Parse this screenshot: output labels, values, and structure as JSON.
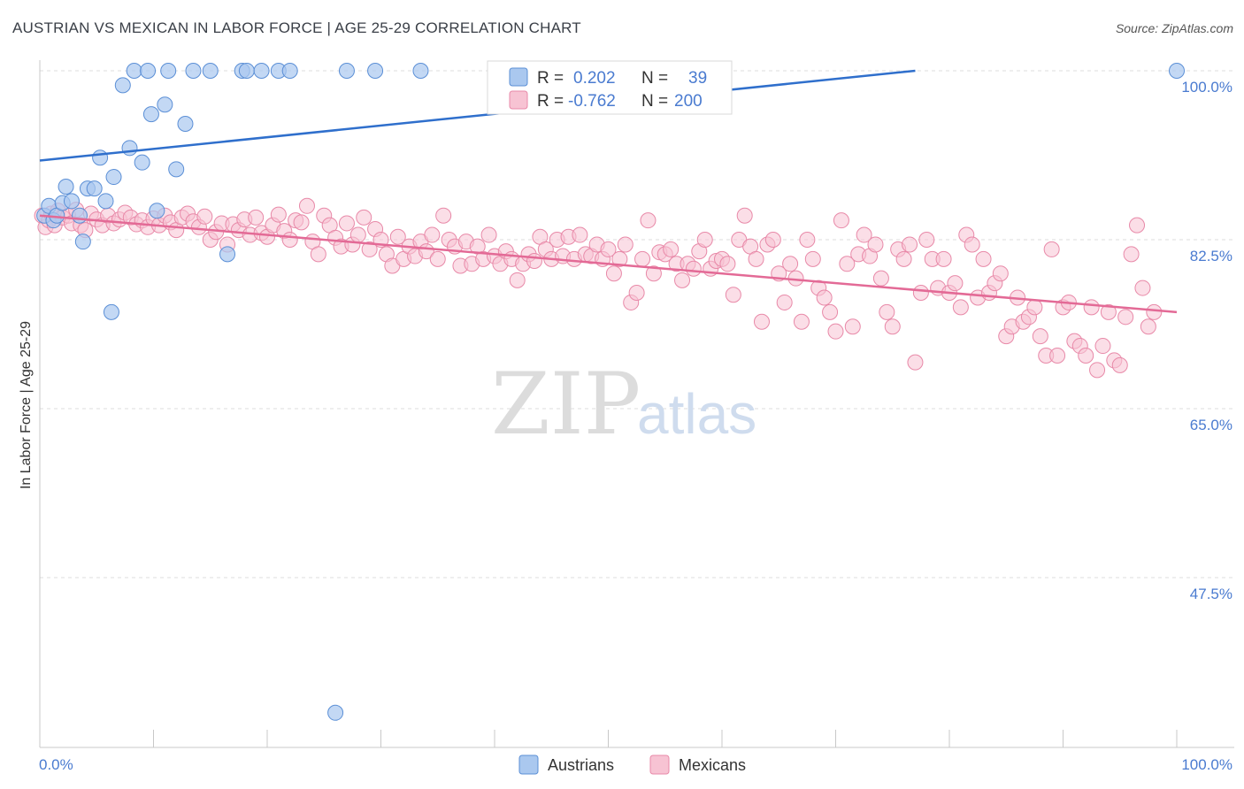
{
  "title": "AUSTRIAN VS MEXICAN IN LABOR FORCE | AGE 25-29 CORRELATION CHART",
  "source": "Source: ZipAtlas.com",
  "watermark": {
    "zip": "ZIP",
    "atlas": "atlas"
  },
  "colors": {
    "austrians_fill": "#aac8ef",
    "austrians_stroke": "#5b8fd6",
    "austrians_line": "#2f6fcc",
    "mexicans_fill": "#f7c3d3",
    "mexicans_stroke": "#e889a8",
    "mexicans_line": "#e36a96",
    "axis_blue": "#4a7bd0"
  },
  "legend": {
    "rows": [
      {
        "r_label": "R =",
        "r_value": "0.202",
        "n_label": "N =",
        "n_value": "39"
      },
      {
        "r_label": "R =",
        "r_value": "-0.762",
        "n_label": "N =",
        "n_value": "200"
      }
    ]
  },
  "chart_data": {
    "type": "scatter",
    "title": "AUSTRIAN VS MEXICAN IN LABOR FORCE | AGE 25-29 CORRELATION CHART",
    "xlabel": "",
    "ylabel": "In Labor Force | Age 25-29",
    "xlim": [
      0,
      100
    ],
    "ylim": [
      30,
      102
    ],
    "x_tick_labels": [
      "0.0%",
      "100.0%"
    ],
    "y_ticks": [
      100.0,
      82.5,
      65.0,
      47.5
    ],
    "y_tick_labels": [
      "100.0%",
      "82.5%",
      "65.0%",
      "47.5%"
    ],
    "grid": true,
    "legend_position": "bottom-center",
    "series": [
      {
        "name": "Austrians",
        "r": 0.202,
        "n": 39,
        "trend": {
          "x": [
            0,
            77
          ],
          "y": [
            90.7,
            100.0
          ]
        },
        "points": [
          [
            0.4,
            85.0
          ],
          [
            0.8,
            86.0
          ],
          [
            1.2,
            84.5
          ],
          [
            1.5,
            85.0
          ],
          [
            2.0,
            86.3
          ],
          [
            2.3,
            88.0
          ],
          [
            2.8,
            86.5
          ],
          [
            3.5,
            85.0
          ],
          [
            3.8,
            82.3
          ],
          [
            4.2,
            87.8
          ],
          [
            4.8,
            87.8
          ],
          [
            5.3,
            91.0
          ],
          [
            5.8,
            86.5
          ],
          [
            6.5,
            89.0
          ],
          [
            7.3,
            98.5
          ],
          [
            7.9,
            92.0
          ],
          [
            8.3,
            100.0
          ],
          [
            9.0,
            90.5
          ],
          [
            9.5,
            100.0
          ],
          [
            9.8,
            95.5
          ],
          [
            10.3,
            85.5
          ],
          [
            11.0,
            96.5
          ],
          [
            11.3,
            100.0
          ],
          [
            12.0,
            89.8
          ],
          [
            12.8,
            94.5
          ],
          [
            13.5,
            100.0
          ],
          [
            15.0,
            100.0
          ],
          [
            16.5,
            81.0
          ],
          [
            17.8,
            100.0
          ],
          [
            18.2,
            100.0
          ],
          [
            19.5,
            100.0
          ],
          [
            21.0,
            100.0
          ],
          [
            22.0,
            100.0
          ],
          [
            26.0,
            33.5
          ],
          [
            27.0,
            100.0
          ],
          [
            29.5,
            100.0
          ],
          [
            33.5,
            100.0
          ],
          [
            6.3,
            75.0
          ],
          [
            100.0,
            100.0
          ]
        ]
      },
      {
        "name": "Mexicans",
        "r": -0.762,
        "n": 200,
        "trend": {
          "x": [
            0,
            100
          ],
          "y": [
            85.0,
            75.0
          ]
        },
        "points": [
          [
            0.2,
            85.0
          ],
          [
            0.5,
            83.8
          ],
          [
            0.8,
            84.5
          ],
          [
            1.0,
            85.2
          ],
          [
            1.3,
            84.0
          ],
          [
            1.6,
            85.5
          ],
          [
            2.0,
            84.8
          ],
          [
            2.5,
            85.0
          ],
          [
            2.8,
            84.2
          ],
          [
            3.2,
            85.6
          ],
          [
            3.6,
            84.0
          ],
          [
            4.0,
            83.5
          ],
          [
            4.5,
            85.2
          ],
          [
            5.0,
            84.6
          ],
          [
            5.5,
            84.0
          ],
          [
            6.0,
            85.0
          ],
          [
            6.5,
            84.2
          ],
          [
            7.0,
            84.6
          ],
          [
            7.5,
            85.3
          ],
          [
            8.0,
            84.8
          ],
          [
            8.5,
            84.1
          ],
          [
            9.0,
            84.5
          ],
          [
            9.5,
            83.8
          ],
          [
            10.0,
            84.7
          ],
          [
            10.5,
            84.0
          ],
          [
            11.0,
            85.0
          ],
          [
            11.5,
            84.3
          ],
          [
            12.0,
            83.5
          ],
          [
            12.5,
            84.8
          ],
          [
            13.0,
            85.2
          ],
          [
            13.5,
            84.4
          ],
          [
            14.0,
            83.8
          ],
          [
            14.5,
            84.9
          ],
          [
            15.0,
            82.5
          ],
          [
            15.5,
            83.3
          ],
          [
            16.0,
            84.2
          ],
          [
            16.5,
            82.0
          ],
          [
            17.0,
            84.1
          ],
          [
            17.5,
            83.5
          ],
          [
            18.0,
            84.6
          ],
          [
            18.5,
            83.0
          ],
          [
            19.0,
            84.8
          ],
          [
            19.5,
            83.2
          ],
          [
            20.0,
            82.8
          ],
          [
            20.5,
            84.0
          ],
          [
            21.0,
            85.1
          ],
          [
            21.5,
            83.4
          ],
          [
            22.0,
            82.5
          ],
          [
            22.5,
            84.5
          ],
          [
            23.0,
            84.3
          ],
          [
            23.5,
            86.0
          ],
          [
            24.0,
            82.3
          ],
          [
            24.5,
            81.0
          ],
          [
            25.0,
            85.0
          ],
          [
            25.5,
            84.0
          ],
          [
            26.0,
            82.7
          ],
          [
            26.5,
            81.8
          ],
          [
            27.0,
            84.2
          ],
          [
            27.5,
            82.0
          ],
          [
            28.0,
            83.0
          ],
          [
            28.5,
            84.8
          ],
          [
            29.0,
            81.5
          ],
          [
            29.5,
            83.6
          ],
          [
            30.0,
            82.5
          ],
          [
            30.5,
            81.0
          ],
          [
            31.0,
            79.8
          ],
          [
            31.5,
            82.8
          ],
          [
            32.0,
            80.5
          ],
          [
            32.5,
            81.8
          ],
          [
            33.0,
            80.8
          ],
          [
            33.5,
            82.3
          ],
          [
            34.0,
            81.3
          ],
          [
            34.5,
            83.0
          ],
          [
            35.0,
            80.5
          ],
          [
            35.5,
            85.0
          ],
          [
            36.0,
            82.5
          ],
          [
            36.5,
            81.8
          ],
          [
            37.0,
            79.8
          ],
          [
            37.5,
            82.3
          ],
          [
            38.0,
            80.0
          ],
          [
            38.5,
            81.8
          ],
          [
            39.0,
            80.5
          ],
          [
            39.5,
            83.0
          ],
          [
            40.0,
            80.8
          ],
          [
            40.5,
            80.0
          ],
          [
            41.0,
            81.3
          ],
          [
            41.5,
            80.5
          ],
          [
            42.0,
            78.3
          ],
          [
            42.5,
            80.0
          ],
          [
            43.0,
            81.0
          ],
          [
            43.5,
            80.3
          ],
          [
            44.0,
            82.8
          ],
          [
            44.5,
            81.5
          ],
          [
            45.0,
            80.5
          ],
          [
            45.5,
            82.5
          ],
          [
            46.0,
            80.8
          ],
          [
            46.5,
            82.8
          ],
          [
            47.0,
            80.5
          ],
          [
            47.5,
            83.0
          ],
          [
            48.0,
            81.0
          ],
          [
            48.5,
            80.8
          ],
          [
            49.0,
            82.0
          ],
          [
            49.5,
            80.5
          ],
          [
            50.0,
            81.5
          ],
          [
            50.5,
            79.0
          ],
          [
            51.0,
            80.5
          ],
          [
            51.5,
            82.0
          ],
          [
            52.0,
            76.0
          ],
          [
            52.5,
            77.0
          ],
          [
            53.0,
            80.5
          ],
          [
            53.5,
            84.5
          ],
          [
            54.0,
            79.0
          ],
          [
            54.5,
            81.2
          ],
          [
            55.0,
            81.0
          ],
          [
            55.5,
            81.5
          ],
          [
            56.0,
            80.0
          ],
          [
            56.5,
            78.3
          ],
          [
            57.0,
            80.0
          ],
          [
            57.5,
            79.5
          ],
          [
            58.0,
            81.3
          ],
          [
            58.5,
            82.5
          ],
          [
            59.0,
            79.5
          ],
          [
            59.5,
            80.3
          ],
          [
            60.0,
            80.5
          ],
          [
            60.5,
            80.0
          ],
          [
            61.0,
            76.8
          ],
          [
            61.5,
            82.5
          ],
          [
            62.0,
            85.0
          ],
          [
            62.5,
            81.8
          ],
          [
            63.0,
            80.5
          ],
          [
            63.5,
            74.0
          ],
          [
            64.0,
            82.0
          ],
          [
            64.5,
            82.5
          ],
          [
            65.0,
            79.0
          ],
          [
            65.5,
            76.0
          ],
          [
            66.0,
            80.0
          ],
          [
            66.5,
            78.5
          ],
          [
            67.0,
            74.0
          ],
          [
            67.5,
            82.5
          ],
          [
            68.0,
            80.5
          ],
          [
            68.5,
            77.5
          ],
          [
            69.0,
            76.5
          ],
          [
            69.5,
            75.0
          ],
          [
            70.0,
            73.0
          ],
          [
            70.5,
            84.5
          ],
          [
            71.0,
            80.0
          ],
          [
            71.5,
            73.5
          ],
          [
            72.0,
            81.0
          ],
          [
            72.5,
            83.0
          ],
          [
            73.0,
            80.8
          ],
          [
            73.5,
            82.0
          ],
          [
            74.0,
            78.5
          ],
          [
            74.5,
            75.0
          ],
          [
            75.0,
            73.5
          ],
          [
            75.5,
            81.5
          ],
          [
            76.0,
            80.5
          ],
          [
            76.5,
            82.0
          ],
          [
            77.0,
            69.8
          ],
          [
            77.5,
            77.0
          ],
          [
            78.0,
            82.5
          ],
          [
            78.5,
            80.5
          ],
          [
            79.0,
            77.5
          ],
          [
            79.5,
            80.5
          ],
          [
            80.0,
            77.0
          ],
          [
            80.5,
            78.0
          ],
          [
            81.0,
            75.5
          ],
          [
            81.5,
            83.0
          ],
          [
            82.0,
            82.0
          ],
          [
            82.5,
            76.5
          ],
          [
            83.0,
            80.5
          ],
          [
            83.5,
            77.0
          ],
          [
            84.0,
            78.0
          ],
          [
            84.5,
            79.0
          ],
          [
            85.0,
            72.5
          ],
          [
            85.5,
            73.5
          ],
          [
            86.0,
            76.5
          ],
          [
            86.5,
            74.0
          ],
          [
            87.0,
            74.5
          ],
          [
            87.5,
            75.5
          ],
          [
            88.0,
            72.5
          ],
          [
            88.5,
            70.5
          ],
          [
            89.0,
            81.5
          ],
          [
            89.5,
            70.5
          ],
          [
            90.0,
            75.5
          ],
          [
            90.5,
            76.0
          ],
          [
            91.0,
            72.0
          ],
          [
            91.5,
            71.5
          ],
          [
            92.0,
            70.5
          ],
          [
            92.5,
            75.5
          ],
          [
            93.0,
            69.0
          ],
          [
            93.5,
            71.5
          ],
          [
            94.0,
            75.0
          ],
          [
            94.5,
            70.0
          ],
          [
            95.0,
            69.5
          ],
          [
            95.5,
            74.5
          ],
          [
            96.0,
            81.0
          ],
          [
            96.5,
            84.0
          ],
          [
            97.0,
            77.5
          ],
          [
            97.5,
            73.5
          ],
          [
            98.0,
            75.0
          ]
        ]
      }
    ]
  }
}
